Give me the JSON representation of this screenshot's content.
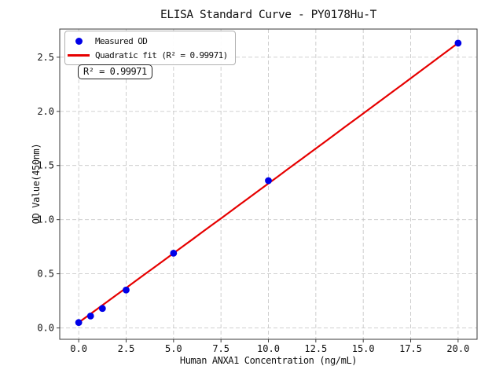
{
  "figure": {
    "kind": "matplotlib-style plot window"
  },
  "chart_data": {
    "type": "scatter",
    "title": "ELISA Standard Curve - PY0178Hu-T",
    "xlabel": "Human ANXA1 Concentration (ng/mL)",
    "ylabel": "OD Value(450nm)",
    "xlim": [
      -1,
      21
    ],
    "ylim": [
      -0.105,
      2.76
    ],
    "x_ticks": [
      0,
      2.5,
      5,
      7.5,
      10,
      12.5,
      15,
      17.5,
      20
    ],
    "x_tick_labels": [
      "0.0",
      "2.5",
      "5.0",
      "7.5",
      "10.0",
      "12.5",
      "15.0",
      "17.5",
      "20.0"
    ],
    "y_ticks": [
      0,
      0.5,
      1,
      1.5,
      2,
      2.5
    ],
    "y_tick_labels": [
      "0.0",
      "0.5",
      "1.0",
      "1.5",
      "2.0",
      "2.5"
    ],
    "grid": true,
    "grid_style": "dashed",
    "series": [
      {
        "name": "Measured OD",
        "kind": "scatter",
        "color": "#0000e8",
        "x": [
          0,
          0.625,
          1.25,
          2.5,
          5,
          10,
          20
        ],
        "y": [
          0.05,
          0.11,
          0.18,
          0.35,
          0.69,
          1.36,
          2.63
        ]
      },
      {
        "name": "Quadratic fit (R² = 0.99971)",
        "kind": "line",
        "color": "#e60000",
        "fit_coefficients": {
          "a": 0.05,
          "b": 0.1277,
          "c": 6.7e-05
        },
        "x_range": [
          0,
          20
        ],
        "r_squared": 0.99971
      }
    ],
    "legend": {
      "position": "upper left",
      "entries": [
        "Measured OD",
        "Quadratic fit (R² = 0.99971)"
      ]
    },
    "annotation": "R² = 0.99971",
    "colors": {
      "grid": "#c9c9c9",
      "spine": "#3a3a3a",
      "tick": "#3a3a3a",
      "text": "#111111",
      "background": "#ffffff"
    }
  }
}
